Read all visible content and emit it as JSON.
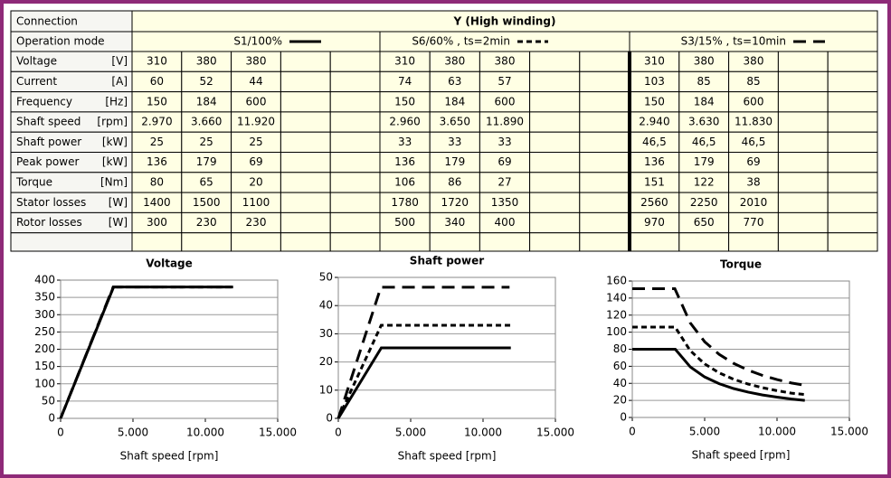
{
  "table": {
    "connection_label": "Connection",
    "connection": "Y (High winding)",
    "mode_label": "Operation mode",
    "modes": [
      "S1/100%",
      "S6/60% , ts=2min",
      "S3/15% , ts=10min"
    ],
    "rows": [
      {
        "label": "Voltage",
        "unit": "[V]",
        "values": [
          [
            "310",
            "380",
            "380"
          ],
          [
            "310",
            "380",
            "380"
          ],
          [
            "310",
            "380",
            "380"
          ]
        ]
      },
      {
        "label": "Current",
        "unit": "[A]",
        "values": [
          [
            "60",
            "52",
            "44"
          ],
          [
            "74",
            "63",
            "57"
          ],
          [
            "103",
            "85",
            "85"
          ]
        ]
      },
      {
        "label": "Frequency",
        "unit": "[Hz]",
        "values": [
          [
            "150",
            "184",
            "600"
          ],
          [
            "150",
            "184",
            "600"
          ],
          [
            "150",
            "184",
            "600"
          ]
        ]
      },
      {
        "label": "Shaft speed",
        "unit": "[rpm]",
        "values": [
          [
            "2.970",
            "3.660",
            "11.920"
          ],
          [
            "2.960",
            "3.650",
            "11.890"
          ],
          [
            "2.940",
            "3.630",
            "11.830"
          ]
        ]
      },
      {
        "label": "Shaft power",
        "unit": "[kW]",
        "values": [
          [
            "25",
            "25",
            "25"
          ],
          [
            "33",
            "33",
            "33"
          ],
          [
            "46,5",
            "46,5",
            "46,5"
          ]
        ]
      },
      {
        "label": "Peak power",
        "unit": "[kW]",
        "values": [
          [
            "136",
            "179",
            "69"
          ],
          [
            "136",
            "179",
            "69"
          ],
          [
            "136",
            "179",
            "69"
          ]
        ]
      },
      {
        "label": "Torque",
        "unit": "[Nm]",
        "values": [
          [
            "80",
            "65",
            "20"
          ],
          [
            "106",
            "86",
            "27"
          ],
          [
            "151",
            "122",
            "38"
          ]
        ]
      },
      {
        "label": "Stator losses",
        "unit": "[W]",
        "values": [
          [
            "1400",
            "1500",
            "1100"
          ],
          [
            "1780",
            "1720",
            "1350"
          ],
          [
            "2560",
            "2250",
            "2010"
          ]
        ]
      },
      {
        "label": "Rotor losses",
        "unit": "[W]",
        "values": [
          [
            "300",
            "230",
            "230"
          ],
          [
            "500",
            "340",
            "400"
          ],
          [
            "970",
            "650",
            "770"
          ]
        ]
      }
    ]
  },
  "chart_data": [
    {
      "type": "line",
      "title": "Voltage",
      "x_label": "Shaft speed [rpm]",
      "xlim": [
        0,
        15000
      ],
      "xticks": [
        0,
        {
          "value": 5000,
          "label": "5.000"
        },
        {
          "value": 10000,
          "label": "10.000"
        },
        {
          "value": 15000,
          "label": "15.000"
        }
      ],
      "ylim": [
        0,
        400
      ],
      "yticks": [
        0,
        50,
        100,
        150,
        200,
        250,
        300,
        350,
        400
      ],
      "grid": true,
      "series": [
        {
          "color": "#000000",
          "dash": "solid",
          "x": [
            0,
            3660,
            11920
          ],
          "values": [
            0,
            380,
            380
          ]
        },
        {
          "color": "#000000",
          "dash": "short",
          "x": [
            0,
            3650,
            11890
          ],
          "values": [
            0,
            380,
            380
          ]
        },
        {
          "color": "#000000",
          "dash": "long",
          "x": [
            0,
            3630,
            11830
          ],
          "values": [
            0,
            380,
            380
          ]
        }
      ]
    },
    {
      "type": "line",
      "title": "Shaft power",
      "x_label": "Shaft speed [rpm]",
      "xlim": [
        0,
        15000
      ],
      "xticks": [
        0,
        {
          "value": 5000,
          "label": "5.000"
        },
        {
          "value": 10000,
          "label": "10.000"
        },
        {
          "value": 15000,
          "label": "15.000"
        }
      ],
      "ylim": [
        0,
        50
      ],
      "yticks": [
        0,
        10,
        20,
        30,
        40,
        50
      ],
      "grid": true,
      "series": [
        {
          "color": "#000000",
          "dash": "solid",
          "x": [
            0,
            2970,
            11920
          ],
          "values": [
            0,
            25,
            25
          ]
        },
        {
          "color": "#000000",
          "dash": "short",
          "x": [
            0,
            2960,
            11890
          ],
          "values": [
            0,
            33,
            33
          ]
        },
        {
          "color": "#000000",
          "dash": "long",
          "x": [
            0,
            2940,
            11830
          ],
          "values": [
            0,
            46.5,
            46.5
          ]
        }
      ]
    },
    {
      "type": "line",
      "title": "Torque",
      "x_label": "Shaft speed [rpm]",
      "xlim": [
        0,
        15000
      ],
      "xticks": [
        0,
        {
          "value": 5000,
          "label": "5.000"
        },
        {
          "value": 10000,
          "label": "10.000"
        },
        {
          "value": 15000,
          "label": "15.000"
        }
      ],
      "ylim": [
        0,
        160
      ],
      "yticks": [
        0,
        20,
        40,
        60,
        80,
        100,
        120,
        140,
        160
      ],
      "grid": true,
      "series": [
        {
          "color": "#000000",
          "dash": "solid",
          "x": [
            0,
            2970,
            4000,
            5000,
            6000,
            7000,
            8000,
            9000,
            10000,
            11000,
            11920
          ],
          "values": [
            80,
            80,
            59.4,
            47.5,
            39.6,
            33.9,
            29.7,
            26.4,
            23.8,
            21.6,
            20
          ]
        },
        {
          "color": "#000000",
          "dash": "short",
          "x": [
            0,
            2960,
            4000,
            5000,
            6000,
            7000,
            8000,
            9000,
            10000,
            11000,
            11890
          ],
          "values": [
            106,
            106,
            78.4,
            62.8,
            52.3,
            44.8,
            39.2,
            34.9,
            31.4,
            28.5,
            27
          ]
        },
        {
          "color": "#000000",
          "dash": "long",
          "x": [
            0,
            2940,
            4000,
            5000,
            6000,
            7000,
            8000,
            9000,
            10000,
            11000,
            11830
          ],
          "values": [
            151,
            151,
            111,
            88.8,
            74,
            63.4,
            55.5,
            49.3,
            44.4,
            40.4,
            38
          ]
        }
      ]
    }
  ]
}
